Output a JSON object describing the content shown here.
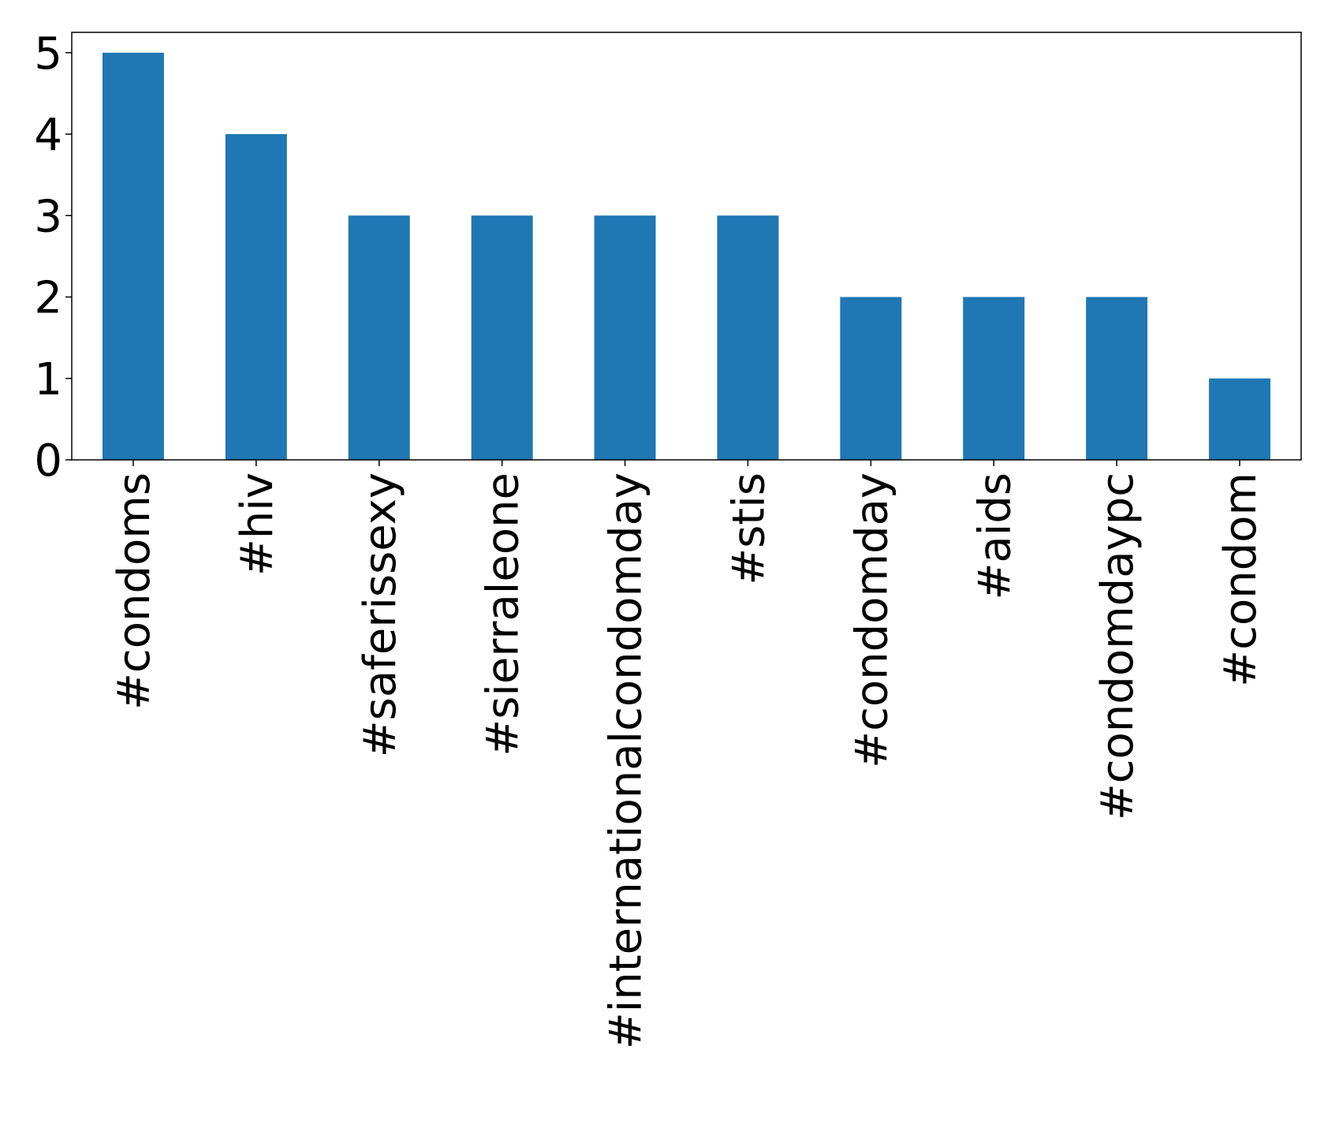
{
  "chart_data": {
    "type": "bar",
    "categories": [
      "#condoms",
      "#hiv",
      "#saferissexy",
      "#sierraleone",
      "#internationalcondomday",
      "#stis",
      "#condomday",
      "#aids",
      "#condomdaypc",
      "#condom"
    ],
    "values": [
      5,
      4,
      3,
      3,
      3,
      3,
      2,
      2,
      2,
      1
    ],
    "ylim": [
      0,
      5.25
    ],
    "yticks": [
      "0",
      "1",
      "2",
      "3",
      "4",
      "5"
    ],
    "bar_color": "#1f77b4",
    "grid": false,
    "legend": "none"
  }
}
